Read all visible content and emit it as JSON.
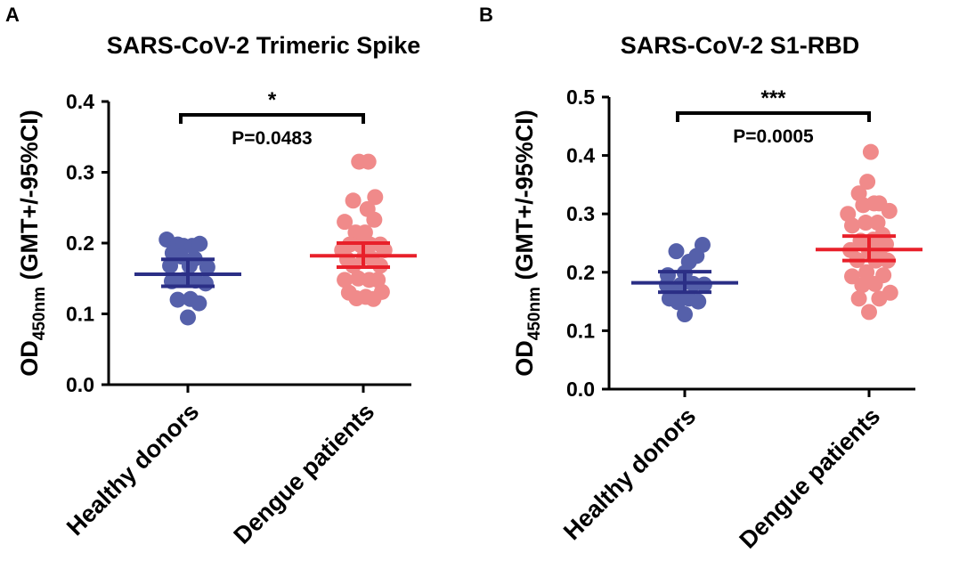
{
  "chart_data": [
    {
      "type": "scatter",
      "panel": "A",
      "title": "SARS-CoV-2 Trimeric Spike",
      "ylabel_main": "OD",
      "ylabel_sub": "450nm",
      "ylabel_rest": " (GMT+/-95%CI)",
      "ylim": [
        0,
        0.4
      ],
      "yticks": [
        "0.0",
        "0.1",
        "0.2",
        "0.3",
        "0.4"
      ],
      "categories": [
        "Healthy donors",
        "Dengue patients"
      ],
      "series": [
        {
          "name": "Healthy donors",
          "color": "#5560aa",
          "line_color": "#2b2f86",
          "gmt": 0.156,
          "ci_low": 0.139,
          "ci_high": 0.177,
          "points": [
            [
              -0.25,
              0.205
            ],
            [
              -0.12,
              0.198
            ],
            [
              -0.05,
              0.196
            ],
            [
              0.05,
              0.196
            ],
            [
              0.14,
              0.199
            ],
            [
              -0.18,
              0.186
            ],
            [
              -0.08,
              0.181
            ],
            [
              0.08,
              0.178
            ],
            [
              -0.21,
              0.168
            ],
            [
              0.02,
              0.168
            ],
            [
              0.23,
              0.166
            ],
            [
              -0.19,
              0.146
            ],
            [
              -0.05,
              0.148
            ],
            [
              0.09,
              0.147
            ],
            [
              0.21,
              0.143
            ],
            [
              -0.12,
              0.12
            ],
            [
              0.03,
              0.121
            ],
            [
              0.13,
              0.115
            ],
            [
              0.0,
              0.095
            ]
          ]
        },
        {
          "name": "Dengue patients",
          "color": "#f08a8a",
          "line_color": "#e8202a",
          "gmt": 0.182,
          "ci_low": 0.166,
          "ci_high": 0.2,
          "points": [
            [
              -0.05,
              0.315
            ],
            [
              0.06,
              0.315
            ],
            [
              -0.12,
              0.26
            ],
            [
              0.14,
              0.265
            ],
            [
              0.05,
              0.248
            ],
            [
              -0.22,
              0.23
            ],
            [
              0.13,
              0.233
            ],
            [
              -0.09,
              0.215
            ],
            [
              0.02,
              0.215
            ],
            [
              -0.16,
              0.198
            ],
            [
              -0.03,
              0.197
            ],
            [
              0.08,
              0.198
            ],
            [
              0.2,
              0.198
            ],
            [
              0.25,
              0.19
            ],
            [
              -0.25,
              0.19
            ],
            [
              -0.19,
              0.177
            ],
            [
              0.1,
              0.178
            ],
            [
              0.01,
              0.18
            ],
            [
              -0.12,
              0.168
            ],
            [
              0.2,
              0.168
            ],
            [
              -0.22,
              0.148
            ],
            [
              -0.06,
              0.15
            ],
            [
              0.07,
              0.148
            ],
            [
              0.17,
              0.148
            ],
            [
              -0.17,
              0.13
            ],
            [
              0.22,
              0.131
            ],
            [
              -0.08,
              0.122
            ],
            [
              0.03,
              0.124
            ],
            [
              0.12,
              0.121
            ]
          ]
        }
      ],
      "significance": {
        "stars": "*",
        "p_text": "P=0.0483"
      }
    },
    {
      "type": "scatter",
      "panel": "B",
      "title": "SARS-CoV-2 S1-RBD",
      "ylabel_main": "OD",
      "ylabel_sub": "450nm",
      "ylabel_rest": " (GMT+/-95%CI)",
      "ylim": [
        0,
        0.5
      ],
      "yticks": [
        "0.0",
        "0.1",
        "0.2",
        "0.3",
        "0.4",
        "0.5"
      ],
      "categories": [
        "Healthy donors",
        "Dengue patients"
      ],
      "series": [
        {
          "name": "Healthy donors",
          "color": "#5560aa",
          "line_color": "#2b2f86",
          "gmt": 0.182,
          "ci_low": 0.166,
          "ci_high": 0.201,
          "points": [
            [
              -0.1,
              0.236
            ],
            [
              0.21,
              0.247
            ],
            [
              0.05,
              0.218
            ],
            [
              0.14,
              0.228
            ],
            [
              -0.2,
              0.195
            ],
            [
              0.0,
              0.199
            ],
            [
              -0.05,
              0.178
            ],
            [
              -0.21,
              0.178
            ],
            [
              0.1,
              0.18
            ],
            [
              0.23,
              0.179
            ],
            [
              -0.12,
              0.162
            ],
            [
              -0.18,
              0.155
            ],
            [
              0.05,
              0.155
            ],
            [
              0.16,
              0.15
            ],
            [
              -0.08,
              0.149
            ],
            [
              0.0,
              0.128
            ]
          ]
        },
        {
          "name": "Dengue patients",
          "color": "#f08a8a",
          "line_color": "#e8202a",
          "gmt": 0.239,
          "ci_low": 0.22,
          "ci_high": 0.262,
          "points": [
            [
              0.02,
              0.406
            ],
            [
              -0.02,
              0.355
            ],
            [
              -0.12,
              0.335
            ],
            [
              0.12,
              0.318
            ],
            [
              -0.25,
              0.3
            ],
            [
              -0.07,
              0.315
            ],
            [
              0.06,
              0.318
            ],
            [
              0.24,
              0.305
            ],
            [
              0.1,
              0.285
            ],
            [
              -0.2,
              0.28
            ],
            [
              -0.04,
              0.285
            ],
            [
              0.16,
              0.264
            ],
            [
              -0.1,
              0.254
            ],
            [
              0.05,
              0.256
            ],
            [
              0.2,
              0.248
            ],
            [
              -0.22,
              0.238
            ],
            [
              0.0,
              0.236
            ],
            [
              0.12,
              0.235
            ],
            [
              -0.14,
              0.221
            ],
            [
              0.08,
              0.22
            ],
            [
              0.22,
              0.22
            ],
            [
              -0.03,
              0.2
            ],
            [
              -0.2,
              0.193
            ],
            [
              0.17,
              0.195
            ],
            [
              -0.08,
              0.178
            ],
            [
              0.07,
              0.18
            ],
            [
              0.25,
              0.165
            ],
            [
              -0.12,
              0.155
            ],
            [
              0.12,
              0.155
            ],
            [
              0.0,
              0.132
            ]
          ]
        }
      ],
      "significance": {
        "stars": "***",
        "p_text": "P=0.0005"
      }
    }
  ]
}
